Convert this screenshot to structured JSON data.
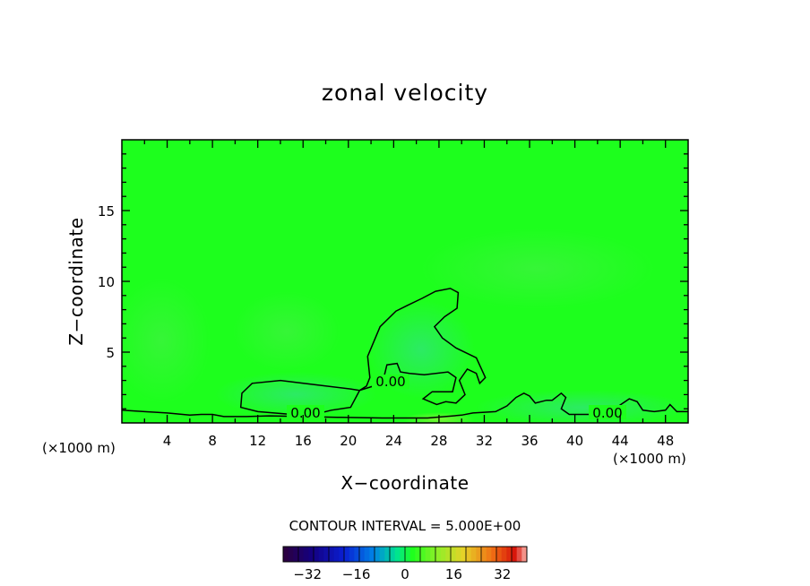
{
  "chart_data": {
    "type": "heatmap",
    "title": "zonal velocity",
    "xlabel": "X−coordinate",
    "ylabel": "Z−coordinate",
    "x_unit_left": "(×1000 m)",
    "x_unit_right": "(×1000 m)",
    "xlim": [
      0,
      50
    ],
    "ylim": [
      0,
      20
    ],
    "x_ticks": [
      4,
      8,
      12,
      16,
      20,
      24,
      28,
      32,
      36,
      40,
      44,
      48
    ],
    "y_ticks": [
      5,
      10,
      15
    ],
    "contour_interval_text": "CONTOUR INTERVAL = 5.000E+00",
    "contour_labels": [
      {
        "text": "0.00",
        "x": 16.5,
        "z": 0.7
      },
      {
        "text": "0.00",
        "x": 24.0,
        "z": 2.9
      },
      {
        "text": "0.00",
        "x": 42.5,
        "z": 0.7
      }
    ],
    "zero_contours": [
      [
        [
          21,
          2.3
        ],
        [
          20.2,
          2.4
        ],
        [
          17,
          2.7
        ],
        [
          14,
          3.0
        ],
        [
          11.5,
          2.8
        ],
        [
          10.6,
          2.1
        ],
        [
          10.5,
          1.1
        ],
        [
          12,
          0.8
        ],
        [
          15,
          0.6
        ],
        [
          17,
          0.6
        ],
        [
          18.5,
          0.9
        ],
        [
          20.2,
          1.1
        ],
        [
          21,
          2.3
        ],
        [
          21.6,
          2.6
        ],
        [
          21.9,
          3.2
        ],
        [
          21.7,
          4.7
        ],
        [
          22.8,
          6.8
        ],
        [
          24.2,
          7.9
        ],
        [
          25.2,
          8.3
        ],
        [
          26.5,
          8.8
        ],
        [
          27.7,
          9.3
        ],
        [
          29,
          9.5
        ],
        [
          29.7,
          9.2
        ],
        [
          29.6,
          8.1
        ],
        [
          28.5,
          7.5
        ],
        [
          27.6,
          6.8
        ],
        [
          28.3,
          6.0
        ],
        [
          29.5,
          5.3
        ],
        [
          31.3,
          4.6
        ],
        [
          32.1,
          3.2
        ],
        [
          31.6,
          2.8
        ],
        [
          31.3,
          3.5
        ],
        [
          30.5,
          3.8
        ],
        [
          29.8,
          3.0
        ],
        [
          30.3,
          2.0
        ],
        [
          29.5,
          1.4
        ],
        [
          28.6,
          1.5
        ],
        [
          27.8,
          1.3
        ],
        [
          26.6,
          1.7
        ],
        [
          27.4,
          2.2
        ],
        [
          29.2,
          2.2
        ],
        [
          29.5,
          3.2
        ],
        [
          28.8,
          3.6
        ],
        [
          26.7,
          3.4
        ],
        [
          25.4,
          3.5
        ],
        [
          24.6,
          3.6
        ],
        [
          24.3,
          4.2
        ],
        [
          23.4,
          4.1
        ],
        [
          23.1,
          3.1
        ],
        [
          22.2,
          2.6
        ],
        [
          21,
          2.3
        ]
      ],
      [
        [
          0,
          0.9
        ],
        [
          2,
          0.8
        ],
        [
          4,
          0.7
        ],
        [
          6,
          0.55
        ],
        [
          7,
          0.6
        ],
        [
          8,
          0.6
        ],
        [
          9,
          0.45
        ],
        [
          10,
          0.45
        ],
        [
          11,
          0.45
        ],
        [
          13,
          0.5
        ],
        [
          16,
          0.45
        ],
        [
          19,
          0.4
        ],
        [
          23,
          0.35
        ],
        [
          27,
          0.35
        ],
        [
          30,
          0.55
        ],
        [
          31,
          0.7
        ],
        [
          32,
          0.75
        ],
        [
          33,
          0.8
        ],
        [
          34,
          1.2
        ],
        [
          34.8,
          1.8
        ],
        [
          35.5,
          2.1
        ],
        [
          36,
          1.9
        ],
        [
          36.5,
          1.4
        ],
        [
          37.5,
          1.6
        ],
        [
          38,
          1.6
        ],
        [
          38.8,
          2.1
        ],
        [
          39.2,
          1.8
        ],
        [
          38.8,
          1.0
        ],
        [
          39.5,
          0.6
        ],
        [
          40.5,
          0.6
        ],
        [
          41.3,
          0.6
        ],
        [
          42,
          1.1
        ],
        [
          43.5,
          1.0
        ],
        [
          44.8,
          1.7
        ],
        [
          45.5,
          1.5
        ],
        [
          46,
          0.9
        ],
        [
          47,
          0.8
        ],
        [
          48,
          0.9
        ],
        [
          48.4,
          1.3
        ],
        [
          49,
          0.8
        ],
        [
          50,
          0.8
        ]
      ]
    ],
    "colorbar": {
      "min": -40,
      "max": 40,
      "step": 5,
      "tick_labels": [
        "−32",
        "−16",
        "0",
        "16",
        "32"
      ],
      "tick_values": [
        -32,
        -16,
        0,
        16,
        32
      ]
    },
    "colors": {
      "background_field": "#1dff1d",
      "axis": "#000000",
      "contour": "#000000"
    }
  }
}
